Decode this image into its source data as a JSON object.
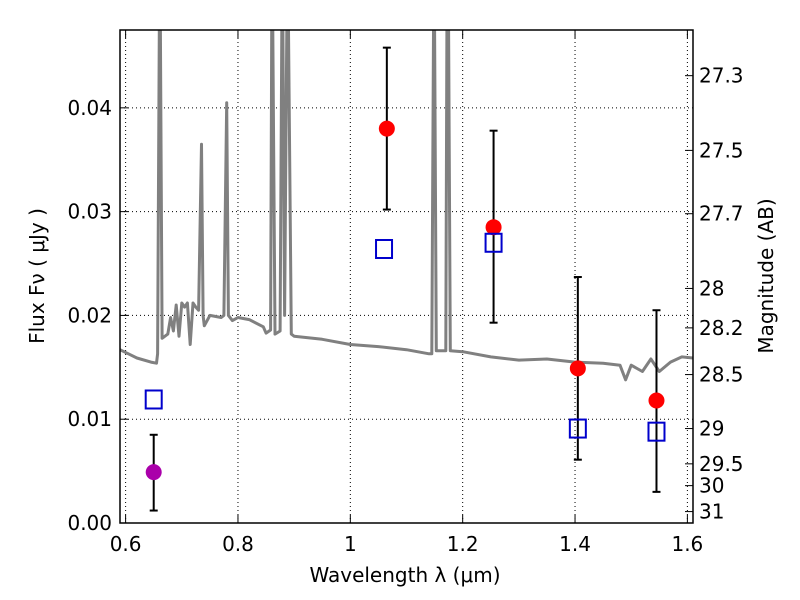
{
  "chart_data": {
    "type": "scatter",
    "title": "",
    "xlabel": "Wavelength  λ (μm)",
    "ylabel": "Flux  Fν ( μJy )",
    "ylabel_right": "Magnitude (AB)",
    "xlim": [
      0.59,
      1.61
    ],
    "ylim": [
      0.0,
      0.0475
    ],
    "x_ticks": [
      0.6,
      0.8,
      1.0,
      1.2,
      1.4,
      1.6
    ],
    "x_tick_labels": [
      "0.6",
      "0.8",
      "1",
      "1.2",
      "1.4",
      "1.6"
    ],
    "y_ticks": [
      0.0,
      0.01,
      0.02,
      0.03,
      0.04
    ],
    "y_tick_labels": [
      "0.00",
      "0.01",
      "0.02",
      "0.03",
      "0.04"
    ],
    "right_ticks": [
      {
        "flux": 0.0431,
        "label": "27.3"
      },
      {
        "flux": 0.0359,
        "label": "27.5"
      },
      {
        "flux": 0.0298,
        "label": "27.7"
      },
      {
        "flux": 0.0226,
        "label": "28"
      },
      {
        "flux": 0.0188,
        "label": "28.2"
      },
      {
        "flux": 0.0143,
        "label": "28.5"
      },
      {
        "flux": 0.0091,
        "label": "29"
      },
      {
        "flux": 0.0057,
        "label": "29.5"
      },
      {
        "flux": 0.0036,
        "label": "30"
      },
      {
        "flux": 0.0011,
        "label": "31"
      }
    ],
    "grid": true,
    "colors": {
      "model": "#808080",
      "observed": "#ff0000",
      "observed_limit": "#aa00aa",
      "model_photometry": "#0000cc",
      "errorbar": "#000000"
    },
    "series": [
      {
        "kind": "line",
        "points": [
          [
            0.59,
            0.0167
          ],
          [
            0.62,
            0.0159
          ],
          [
            0.645,
            0.0155
          ],
          [
            0.655,
            0.0154
          ],
          [
            0.657,
            0.0163
          ],
          [
            0.66,
            0.0475
          ],
          [
            0.662,
            0.0475
          ],
          [
            0.665,
            0.0178
          ],
          [
            0.675,
            0.0182
          ],
          [
            0.68,
            0.0198
          ],
          [
            0.685,
            0.0185
          ],
          [
            0.69,
            0.021
          ],
          [
            0.695,
            0.018
          ],
          [
            0.7,
            0.0212
          ],
          [
            0.705,
            0.0208
          ],
          [
            0.71,
            0.0212
          ],
          [
            0.715,
            0.0172
          ],
          [
            0.72,
            0.0212
          ],
          [
            0.725,
            0.0208
          ],
          [
            0.73,
            0.0205
          ],
          [
            0.735,
            0.0365
          ],
          [
            0.738,
            0.02
          ],
          [
            0.74,
            0.019
          ],
          [
            0.75,
            0.02
          ],
          [
            0.77,
            0.0198
          ],
          [
            0.775,
            0.02
          ],
          [
            0.78,
            0.0405
          ],
          [
            0.783,
            0.02
          ],
          [
            0.79,
            0.0195
          ],
          [
            0.8,
            0.0198
          ],
          [
            0.82,
            0.0196
          ],
          [
            0.845,
            0.0189
          ],
          [
            0.85,
            0.0183
          ],
          [
            0.858,
            0.0186
          ],
          [
            0.86,
            0.0475
          ],
          [
            0.862,
            0.0475
          ],
          [
            0.866,
            0.0182
          ],
          [
            0.875,
            0.0185
          ],
          [
            0.878,
            0.0475
          ],
          [
            0.88,
            0.0475
          ],
          [
            0.883,
            0.02
          ],
          [
            0.887,
            0.0475
          ],
          [
            0.89,
            0.0475
          ],
          [
            0.895,
            0.0182
          ],
          [
            0.9,
            0.018
          ],
          [
            0.95,
            0.0177
          ],
          [
            1.0,
            0.0172
          ],
          [
            1.05,
            0.017
          ],
          [
            1.1,
            0.0167
          ],
          [
            1.14,
            0.0163
          ],
          [
            1.145,
            0.0163
          ],
          [
            1.148,
            0.0475
          ],
          [
            1.15,
            0.0475
          ],
          [
            1.153,
            0.0166
          ],
          [
            1.17,
            0.0166
          ],
          [
            1.172,
            0.0475
          ],
          [
            1.175,
            0.0475
          ],
          [
            1.178,
            0.0166
          ],
          [
            1.2,
            0.0165
          ],
          [
            1.25,
            0.016
          ],
          [
            1.3,
            0.0157
          ],
          [
            1.35,
            0.0158
          ],
          [
            1.4,
            0.0155
          ],
          [
            1.45,
            0.0154
          ],
          [
            1.48,
            0.0152
          ],
          [
            1.49,
            0.0138
          ],
          [
            1.5,
            0.0152
          ],
          [
            1.52,
            0.0146
          ],
          [
            1.535,
            0.0158
          ],
          [
            1.55,
            0.0146
          ],
          [
            1.57,
            0.0155
          ],
          [
            1.59,
            0.016
          ],
          [
            1.61,
            0.0159
          ]
        ]
      },
      {
        "kind": "points",
        "marker": "circle",
        "points": [
          {
            "x": 1.065,
            "y": 0.038,
            "yerr_low": 0.0302,
            "yerr_high": 0.0458
          },
          {
            "x": 1.255,
            "y": 0.0285,
            "yerr_low": 0.0193,
            "yerr_high": 0.0378
          },
          {
            "x": 1.405,
            "y": 0.0149,
            "yerr_low": 0.0061,
            "yerr_high": 0.0237
          },
          {
            "x": 1.545,
            "y": 0.0118,
            "yerr_low": 0.003,
            "yerr_high": 0.0205
          }
        ]
      },
      {
        "kind": "points",
        "marker": "circle",
        "points": [
          {
            "x": 0.65,
            "y": 0.0049,
            "yerr_low": 0.0012,
            "yerr_high": 0.0085
          }
        ]
      },
      {
        "kind": "points",
        "marker": "square-open",
        "points": [
          {
            "x": 0.65,
            "y": 0.0119
          },
          {
            "x": 1.06,
            "y": 0.0264
          },
          {
            "x": 1.255,
            "y": 0.027
          },
          {
            "x": 1.405,
            "y": 0.0091
          },
          {
            "x": 1.545,
            "y": 0.0088
          }
        ]
      }
    ]
  }
}
